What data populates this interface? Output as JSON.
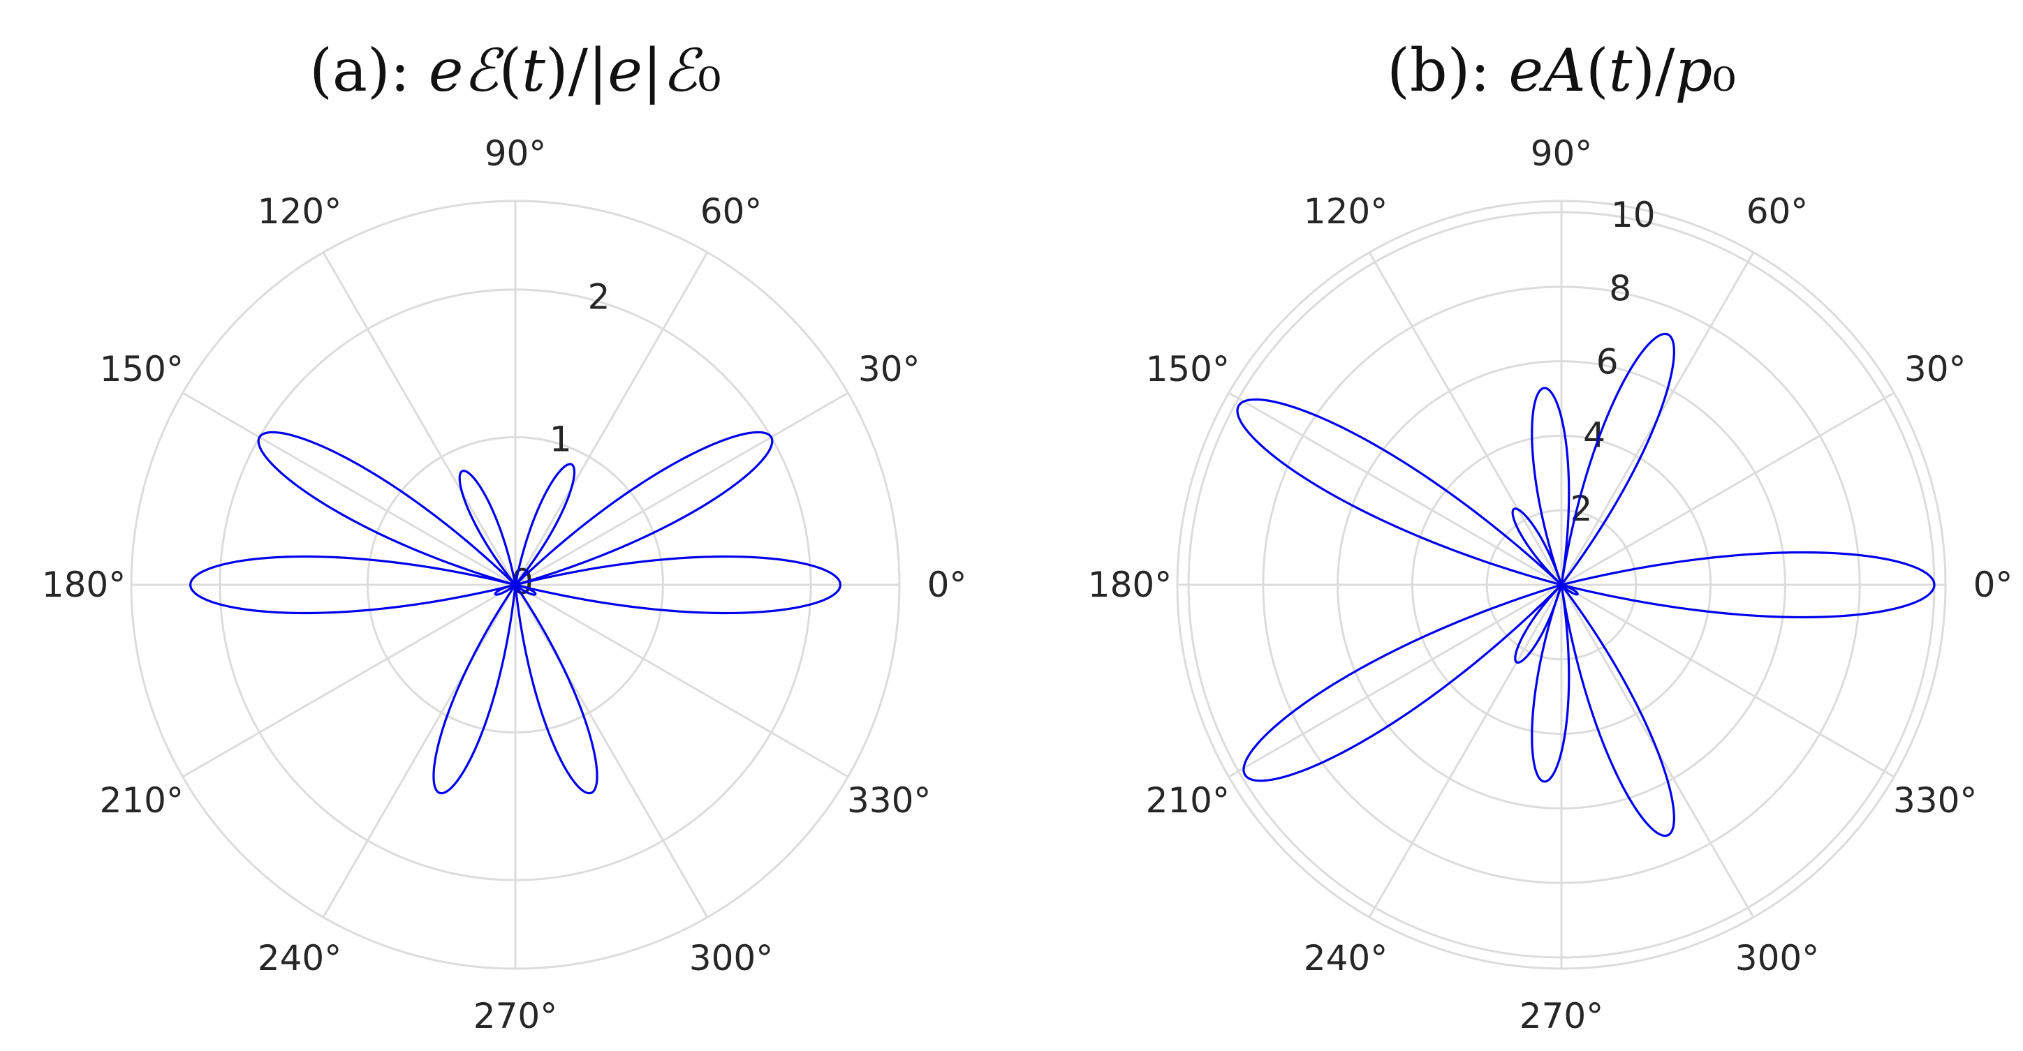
{
  "chart_data": [
    {
      "type": "line",
      "coordinate_system": "polar",
      "title": "(a): eℰ(t)/|e|ℰ₀",
      "title_parts": {
        "prefix": "(a): ",
        "math": [
          "e",
          "ℰ",
          "(",
          "t",
          ")/|",
          "e",
          "|",
          "ℰ",
          "₀"
        ]
      },
      "theta_ticks_deg": [
        0,
        30,
        60,
        90,
        120,
        150,
        180,
        210,
        240,
        270,
        300,
        330
      ],
      "theta_tick_labels": [
        "0°",
        "30°",
        "60°",
        "90°",
        "120°",
        "150°",
        "180°",
        "210°",
        "240°",
        "270°",
        "300°",
        "330°"
      ],
      "r_ticks": [
        0,
        1,
        2
      ],
      "r_tick_labels": [
        "0",
        "1",
        "2"
      ],
      "r_tick_label_angle_deg": 75,
      "rlim": [
        0,
        2.6
      ],
      "grid": true,
      "series": [
        {
          "color": "#0000ee",
          "curve": "rose",
          "lobes": [
            {
              "angle_deg": 0,
              "max_r": 2.2
            },
            {
              "angle_deg": 30,
              "max_r": 2.0
            },
            {
              "angle_deg": 65,
              "max_r": 0.9
            },
            {
              "angle_deg": 115,
              "max_r": 0.85
            },
            {
              "angle_deg": 150,
              "max_r": 2.0
            },
            {
              "angle_deg": 180,
              "max_r": 2.2
            },
            {
              "angle_deg": 205,
              "max_r": 0.15
            },
            {
              "angle_deg": 250,
              "max_r": 1.5
            },
            {
              "angle_deg": 290,
              "max_r": 1.5
            },
            {
              "angle_deg": 335,
              "max_r": 0.15
            }
          ]
        }
      ]
    },
    {
      "type": "line",
      "coordinate_system": "polar",
      "title": "(b): eA(t)/p₀",
      "title_parts": {
        "prefix": "(b): ",
        "math": [
          "e",
          "A",
          "(",
          "t",
          ")/",
          "p",
          "₀"
        ]
      },
      "theta_ticks_deg": [
        0,
        30,
        60,
        90,
        120,
        150,
        180,
        210,
        240,
        270,
        300,
        330
      ],
      "theta_tick_labels": [
        "0°",
        "30°",
        "60°",
        "90°",
        "120°",
        "150°",
        "180°",
        "210°",
        "240°",
        "270°",
        "300°",
        "330°"
      ],
      "r_ticks": [
        2,
        4,
        6,
        8,
        10
      ],
      "r_tick_labels": [
        "2",
        "4",
        "6",
        "8",
        "10"
      ],
      "r_tick_label_angle_deg": 80,
      "rlim": [
        0,
        10.3
      ],
      "grid": true,
      "series": [
        {
          "color": "#0000ee",
          "curve": "rose",
          "lobes": [
            {
              "angle_deg": 0,
              "max_r": 10.0
            },
            {
              "angle_deg": 67,
              "max_r": 7.3
            },
            {
              "angle_deg": 95,
              "max_r": 5.3
            },
            {
              "angle_deg": 122,
              "max_r": 2.4
            },
            {
              "angle_deg": 151,
              "max_r": 9.9
            },
            {
              "angle_deg": 211,
              "max_r": 9.9
            },
            {
              "angle_deg": 240,
              "max_r": 2.4
            },
            {
              "angle_deg": 265,
              "max_r": 5.3
            },
            {
              "angle_deg": 293,
              "max_r": 7.3
            },
            {
              "angle_deg": 330,
              "max_r": 0.5
            }
          ]
        }
      ]
    }
  ]
}
